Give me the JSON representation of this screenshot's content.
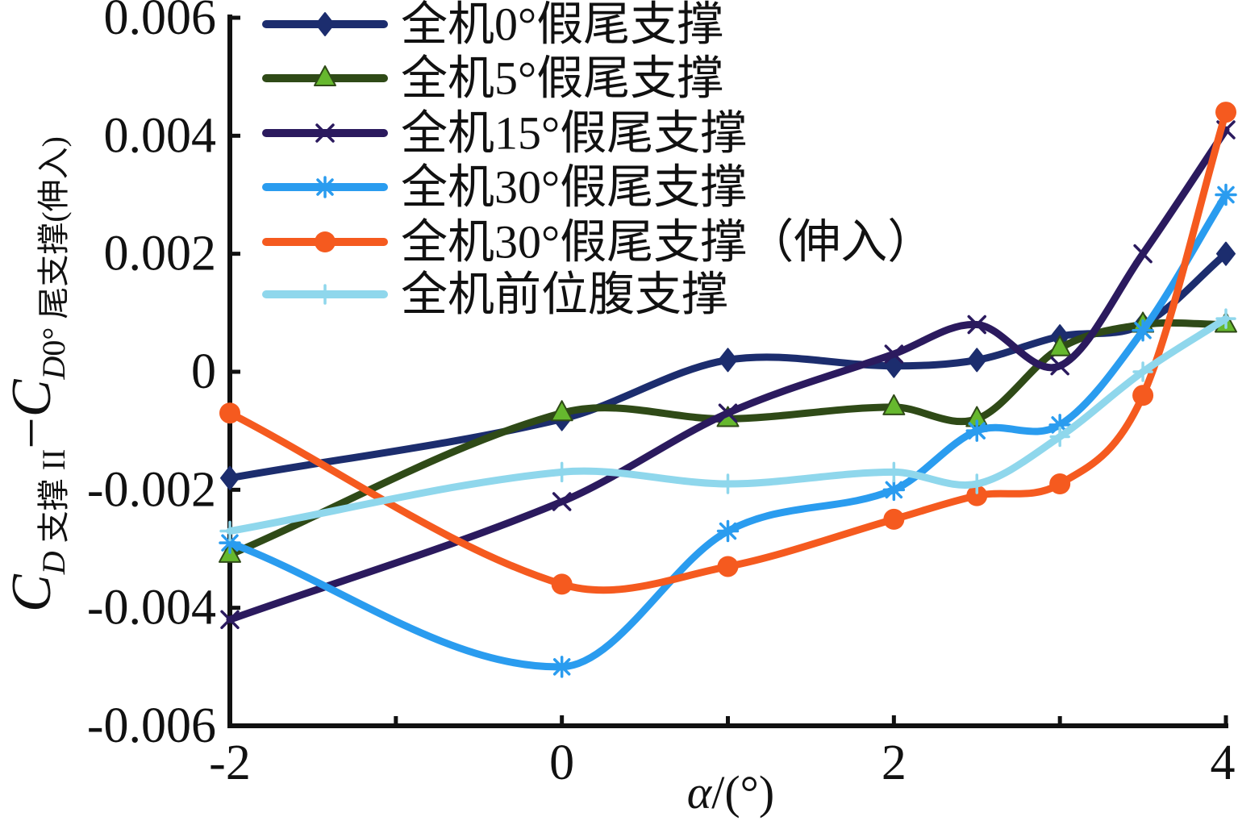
{
  "chart_data": {
    "type": "line",
    "title": "",
    "xlabel": {
      "variable": "α",
      "unit": "/(°)"
    },
    "ylabel": {
      "term1_symbol": "C",
      "term1_sub_var": "D",
      "term1_sub_text": " 支撑 II",
      "operator": "−",
      "term2_symbol": "C",
      "term2_sub_var": "D",
      "term2_sub_text": "0° 尾支撑(伸入)"
    },
    "xlim": [
      -2,
      4
    ],
    "ylim": [
      -0.006,
      0.006
    ],
    "x_ticks": [
      "-2",
      "0",
      "2",
      "4"
    ],
    "x_minor_ticks": [
      -1,
      1,
      3
    ],
    "y_ticks": [
      "0.006",
      "0.004",
      "0.002",
      "0",
      "-0.002",
      "-0.004",
      "-0.006"
    ],
    "grid": false,
    "legend_position": "top-left",
    "x": [
      -2,
      0,
      1,
      2,
      2.5,
      3,
      3.5,
      4
    ],
    "series": [
      {
        "name": "全机0°假尾支撑",
        "color": "#1c2d6e",
        "marker": "diamond",
        "values": [
          -0.0018,
          -0.0008,
          0.0002,
          0.0001,
          0.0002,
          0.0006,
          0.0008,
          0.002
        ]
      },
      {
        "name": "全机5°假尾支撑",
        "color": "#2f4a17",
        "marker": "triangle",
        "marker_fill": "#66b82e",
        "values": [
          -0.0031,
          -0.0007,
          -0.0008,
          -0.0006,
          -0.0008,
          0.0004,
          0.0008,
          0.0008
        ]
      },
      {
        "name": "全机15°假尾支撑",
        "color": "#2b1a5e",
        "marker": "x",
        "values": [
          -0.0042,
          -0.0022,
          -0.0007,
          0.0003,
          0.0008,
          0.0001,
          0.002,
          0.0041
        ]
      },
      {
        "name": "全机30°假尾支撑",
        "color": "#2a9cef",
        "marker": "asterisk",
        "values": [
          -0.0029,
          -0.005,
          -0.0027,
          -0.002,
          -0.001,
          -0.0009,
          0.0007,
          0.003
        ]
      },
      {
        "name": "全机30°假尾支撑（伸入）",
        "color": "#f55a1f",
        "marker": "circle",
        "values": [
          -0.0007,
          -0.0036,
          -0.0033,
          -0.0025,
          -0.0021,
          -0.0019,
          -0.0004,
          0.0044
        ]
      },
      {
        "name": "全机前位腹支撑",
        "color": "#8fd7ec",
        "marker": "plus",
        "values": [
          -0.0027,
          -0.0017,
          -0.0019,
          -0.0017,
          -0.0019,
          -0.0011,
          0.0,
          0.0009
        ]
      }
    ]
  }
}
